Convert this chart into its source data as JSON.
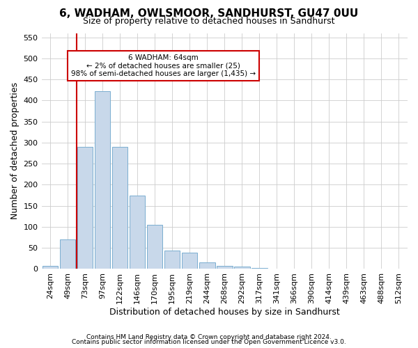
{
  "title1": "6, WADHAM, OWLSMOOR, SANDHURST, GU47 0UU",
  "title2": "Size of property relative to detached houses in Sandhurst",
  "xlabel": "Distribution of detached houses by size in Sandhurst",
  "ylabel": "Number of detached properties",
  "bar_color": "#c8d8ea",
  "bar_edge_color": "#7aaed0",
  "categories": [
    "24sqm",
    "49sqm",
    "73sqm",
    "97sqm",
    "122sqm",
    "146sqm",
    "170sqm",
    "195sqm",
    "219sqm",
    "244sqm",
    "268sqm",
    "292sqm",
    "317sqm",
    "341sqm",
    "366sqm",
    "390sqm",
    "414sqm",
    "439sqm",
    "463sqm",
    "488sqm",
    "512sqm"
  ],
  "values": [
    7,
    70,
    290,
    422,
    290,
    175,
    105,
    43,
    38,
    16,
    8,
    5,
    2,
    1,
    0,
    0,
    1,
    0,
    0,
    0,
    1
  ],
  "ylim": [
    0,
    560
  ],
  "yticks": [
    0,
    50,
    100,
    150,
    200,
    250,
    300,
    350,
    400,
    450,
    500,
    550
  ],
  "property_line_x": 1.5,
  "annotation_text": "6 WADHAM: 64sqm\n← 2% of detached houses are smaller (25)\n98% of semi-detached houses are larger (1,435) →",
  "annotation_box_color": "#ffffff",
  "annotation_box_edge": "#cc0000",
  "property_line_color": "#cc0000",
  "footer1": "Contains HM Land Registry data © Crown copyright and database right 2024.",
  "footer2": "Contains public sector information licensed under the Open Government Licence v3.0.",
  "bg_color": "#ffffff",
  "grid_color": "#cccccc",
  "title1_fontsize": 11,
  "title2_fontsize": 9,
  "axis_label_fontsize": 9,
  "tick_fontsize": 8,
  "footer_fontsize": 6.5
}
